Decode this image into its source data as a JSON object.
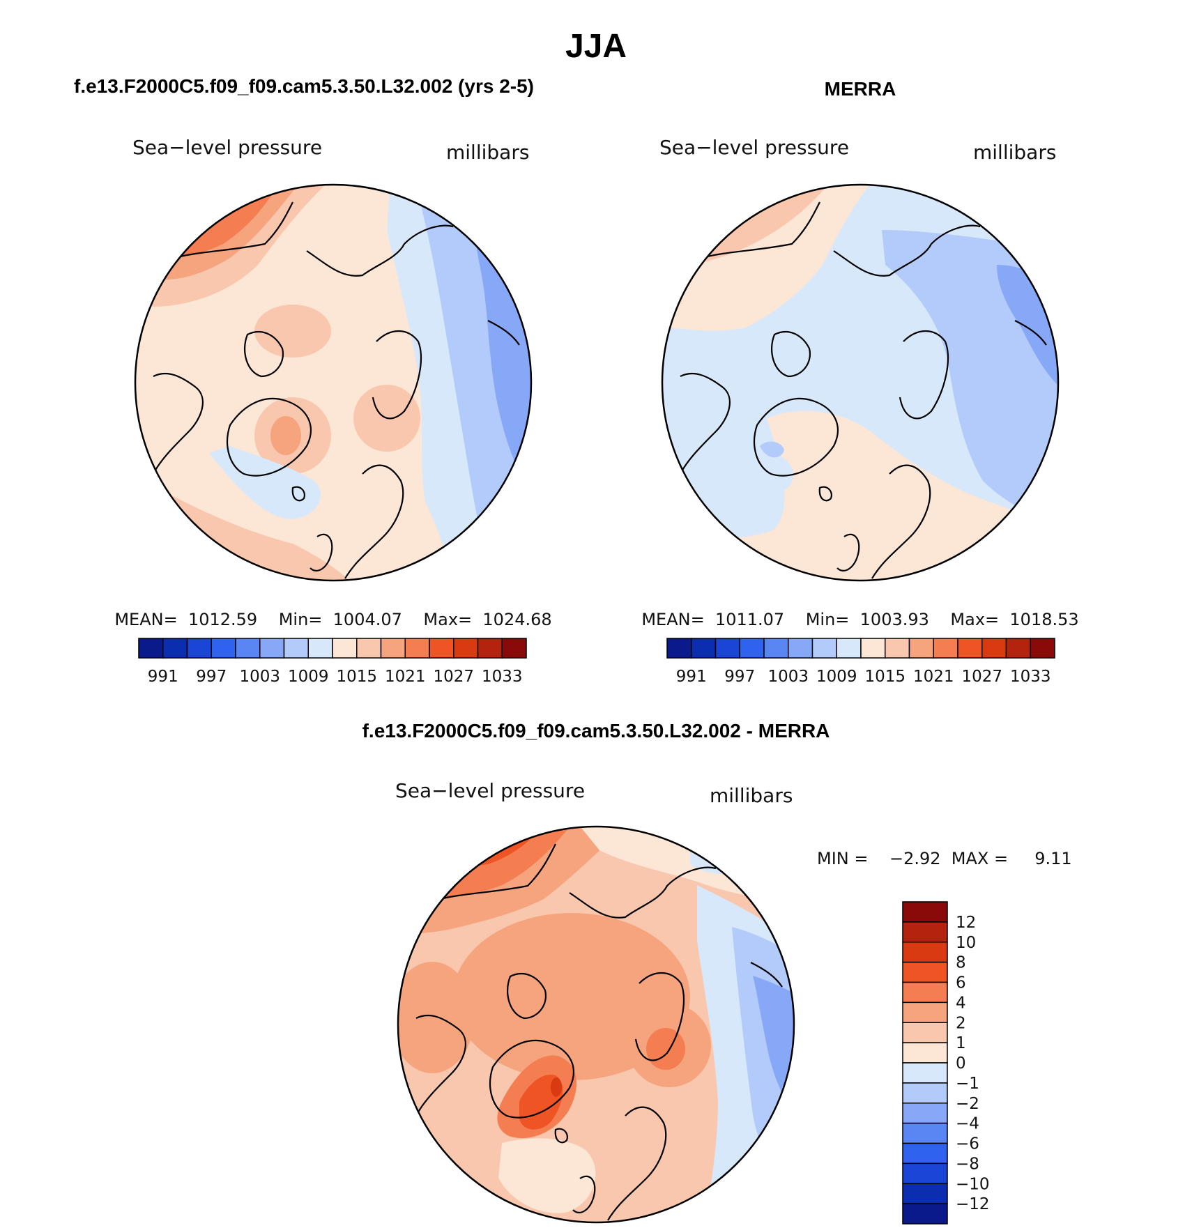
{
  "figure": {
    "title": "JJA"
  },
  "chart_data": [
    {
      "type": "heatmap",
      "title": "f.e13.F2000C5.f09_f09.cam5.3.50.L32.002 (yrs 2-5)",
      "variable": "Sea−level pressure",
      "units": "millibars",
      "projection": "north-polar-stereographic",
      "stats": {
        "text": "MEAN=  1012.59    Min=  1004.07    Max=  1024.68",
        "mean": 1012.59,
        "min": 1004.07,
        "max": 1024.68
      },
      "colorbar": {
        "orientation": "horizontal",
        "levels": [
          "991",
          "997",
          "1003",
          "1009",
          "1015",
          "1021",
          "1027",
          "1033"
        ],
        "colors": [
          "#0a1a8a",
          "#0b2db0",
          "#1a45d6",
          "#2f62ee",
          "#5a86f4",
          "#86a8f7",
          "#b2cbfb",
          "#d7e8fb",
          "#fce6d6",
          "#f9c7ad",
          "#f6a47e",
          "#f47d52",
          "#ef5425",
          "#d93a12",
          "#b4230d",
          "#8a0a0a"
        ]
      }
    },
    {
      "type": "heatmap",
      "title": "MERRA",
      "variable": "Sea−level pressure",
      "units": "millibars",
      "projection": "north-polar-stereographic",
      "stats": {
        "text": "MEAN=  1011.07    Min=  1003.93    Max=  1018.53",
        "mean": 1011.07,
        "min": 1003.93,
        "max": 1018.53
      },
      "colorbar": {
        "orientation": "horizontal",
        "levels": [
          "991",
          "997",
          "1003",
          "1009",
          "1015",
          "1021",
          "1027",
          "1033"
        ],
        "colors": [
          "#0a1a8a",
          "#0b2db0",
          "#1a45d6",
          "#2f62ee",
          "#5a86f4",
          "#86a8f7",
          "#b2cbfb",
          "#d7e8fb",
          "#fce6d6",
          "#f9c7ad",
          "#f6a47e",
          "#f47d52",
          "#ef5425",
          "#d93a12",
          "#b4230d",
          "#8a0a0a"
        ]
      }
    },
    {
      "type": "heatmap",
      "title": "f.e13.F2000C5.f09_f09.cam5.3.50.L32.002 - MERRA",
      "variable": "Sea−level pressure",
      "units": "millibars",
      "projection": "north-polar-stereographic",
      "stats": {
        "text": "MIN =    −2.92  MAX =     9.11",
        "min": -2.92,
        "max": 9.11
      },
      "colorbar": {
        "orientation": "vertical",
        "levels": [
          "12",
          "10",
          "8",
          "6",
          "4",
          "2",
          "1",
          "0",
          "−1",
          "−2",
          "−4",
          "−6",
          "−8",
          "−10",
          "−12"
        ],
        "colors": [
          "#8a0a0a",
          "#b4230d",
          "#d93a12",
          "#ef5425",
          "#f47d52",
          "#f6a47e",
          "#f9c7ad",
          "#fce6d6",
          "#d7e8fb",
          "#b2cbfb",
          "#86a8f7",
          "#5a86f4",
          "#2f62ee",
          "#1a45d6",
          "#0b2db0",
          "#0a1a8a"
        ]
      }
    }
  ]
}
